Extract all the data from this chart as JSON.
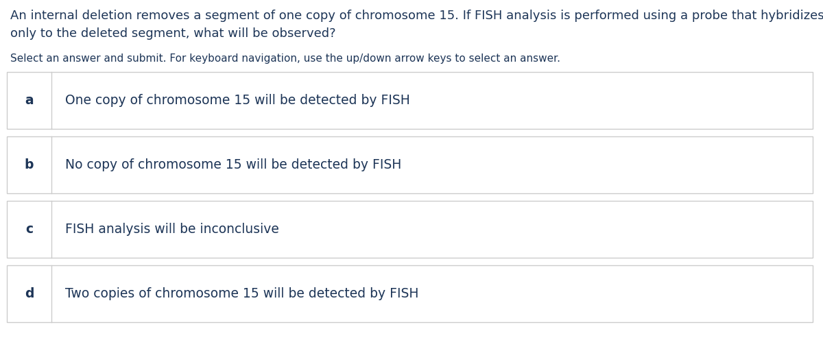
{
  "background_color": "#ffffff",
  "question_text_line1": "An internal deletion removes a segment of one copy of chromosome 15. If FISH analysis is performed using a probe that hybridizes",
  "question_text_line2": "only to the deleted segment, what will be observed?",
  "instruction_text": "Select an answer and submit. For keyboard navigation, use the up/down arrow keys to select an answer.",
  "options": [
    {
      "label": "a",
      "text": "One copy of chromosome 15 will be detected by FISH"
    },
    {
      "label": "b",
      "text": "No copy of chromosome 15 will be detected by FISH"
    },
    {
      "label": "c",
      "text": "FISH analysis will be inconclusive"
    },
    {
      "label": "d",
      "text": "Two copies of chromosome 15 will be detected by FISH"
    }
  ],
  "text_color": "#1d3557",
  "border_color": "#cccccc",
  "label_color": "#1d3557",
  "option_text_color": "#1d3557",
  "question_fontsize": 13.0,
  "instruction_fontsize": 11.0,
  "option_label_fontsize": 13.5,
  "option_text_fontsize": 13.5,
  "fig_width": 12.0,
  "fig_height": 4.96,
  "dpi": 100
}
